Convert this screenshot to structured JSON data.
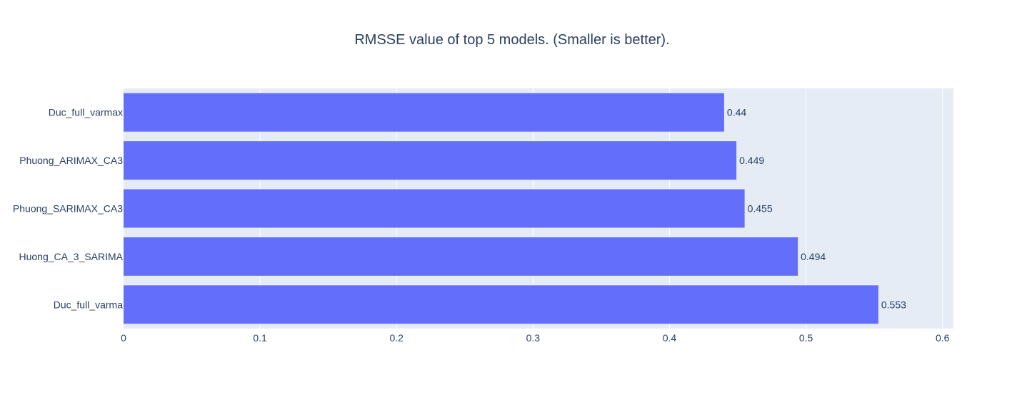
{
  "chart_data": {
    "type": "bar",
    "orientation": "horizontal",
    "title": "RMSSE value of top 5 models. (Smaller is better).",
    "xlabel": "",
    "ylabel": "",
    "categories": [
      "Duc_full_varmax",
      "Phuong_ARIMAX_CA3",
      "Phuong_SARIMAX_CA3",
      "Huong_CA_3_SARIMA",
      "Duc_full_varma"
    ],
    "values": [
      0.44,
      0.449,
      0.455,
      0.494,
      0.553
    ],
    "data_labels": [
      "0.44",
      "0.449",
      "0.455",
      "0.494",
      "0.553"
    ],
    "xlim": [
      0,
      0.608
    ],
    "xticks": [
      0,
      0.1,
      0.2,
      0.3,
      0.4,
      0.5,
      0.6
    ],
    "xtick_labels": [
      "0",
      "0.1",
      "0.2",
      "0.3",
      "0.4",
      "0.5",
      "0.6"
    ],
    "grid": true,
    "colors": {
      "bar": "#636efa",
      "plot_bg": "#e5ecf6",
      "grid": "#ffffff",
      "text": "#2a3f5f"
    }
  }
}
